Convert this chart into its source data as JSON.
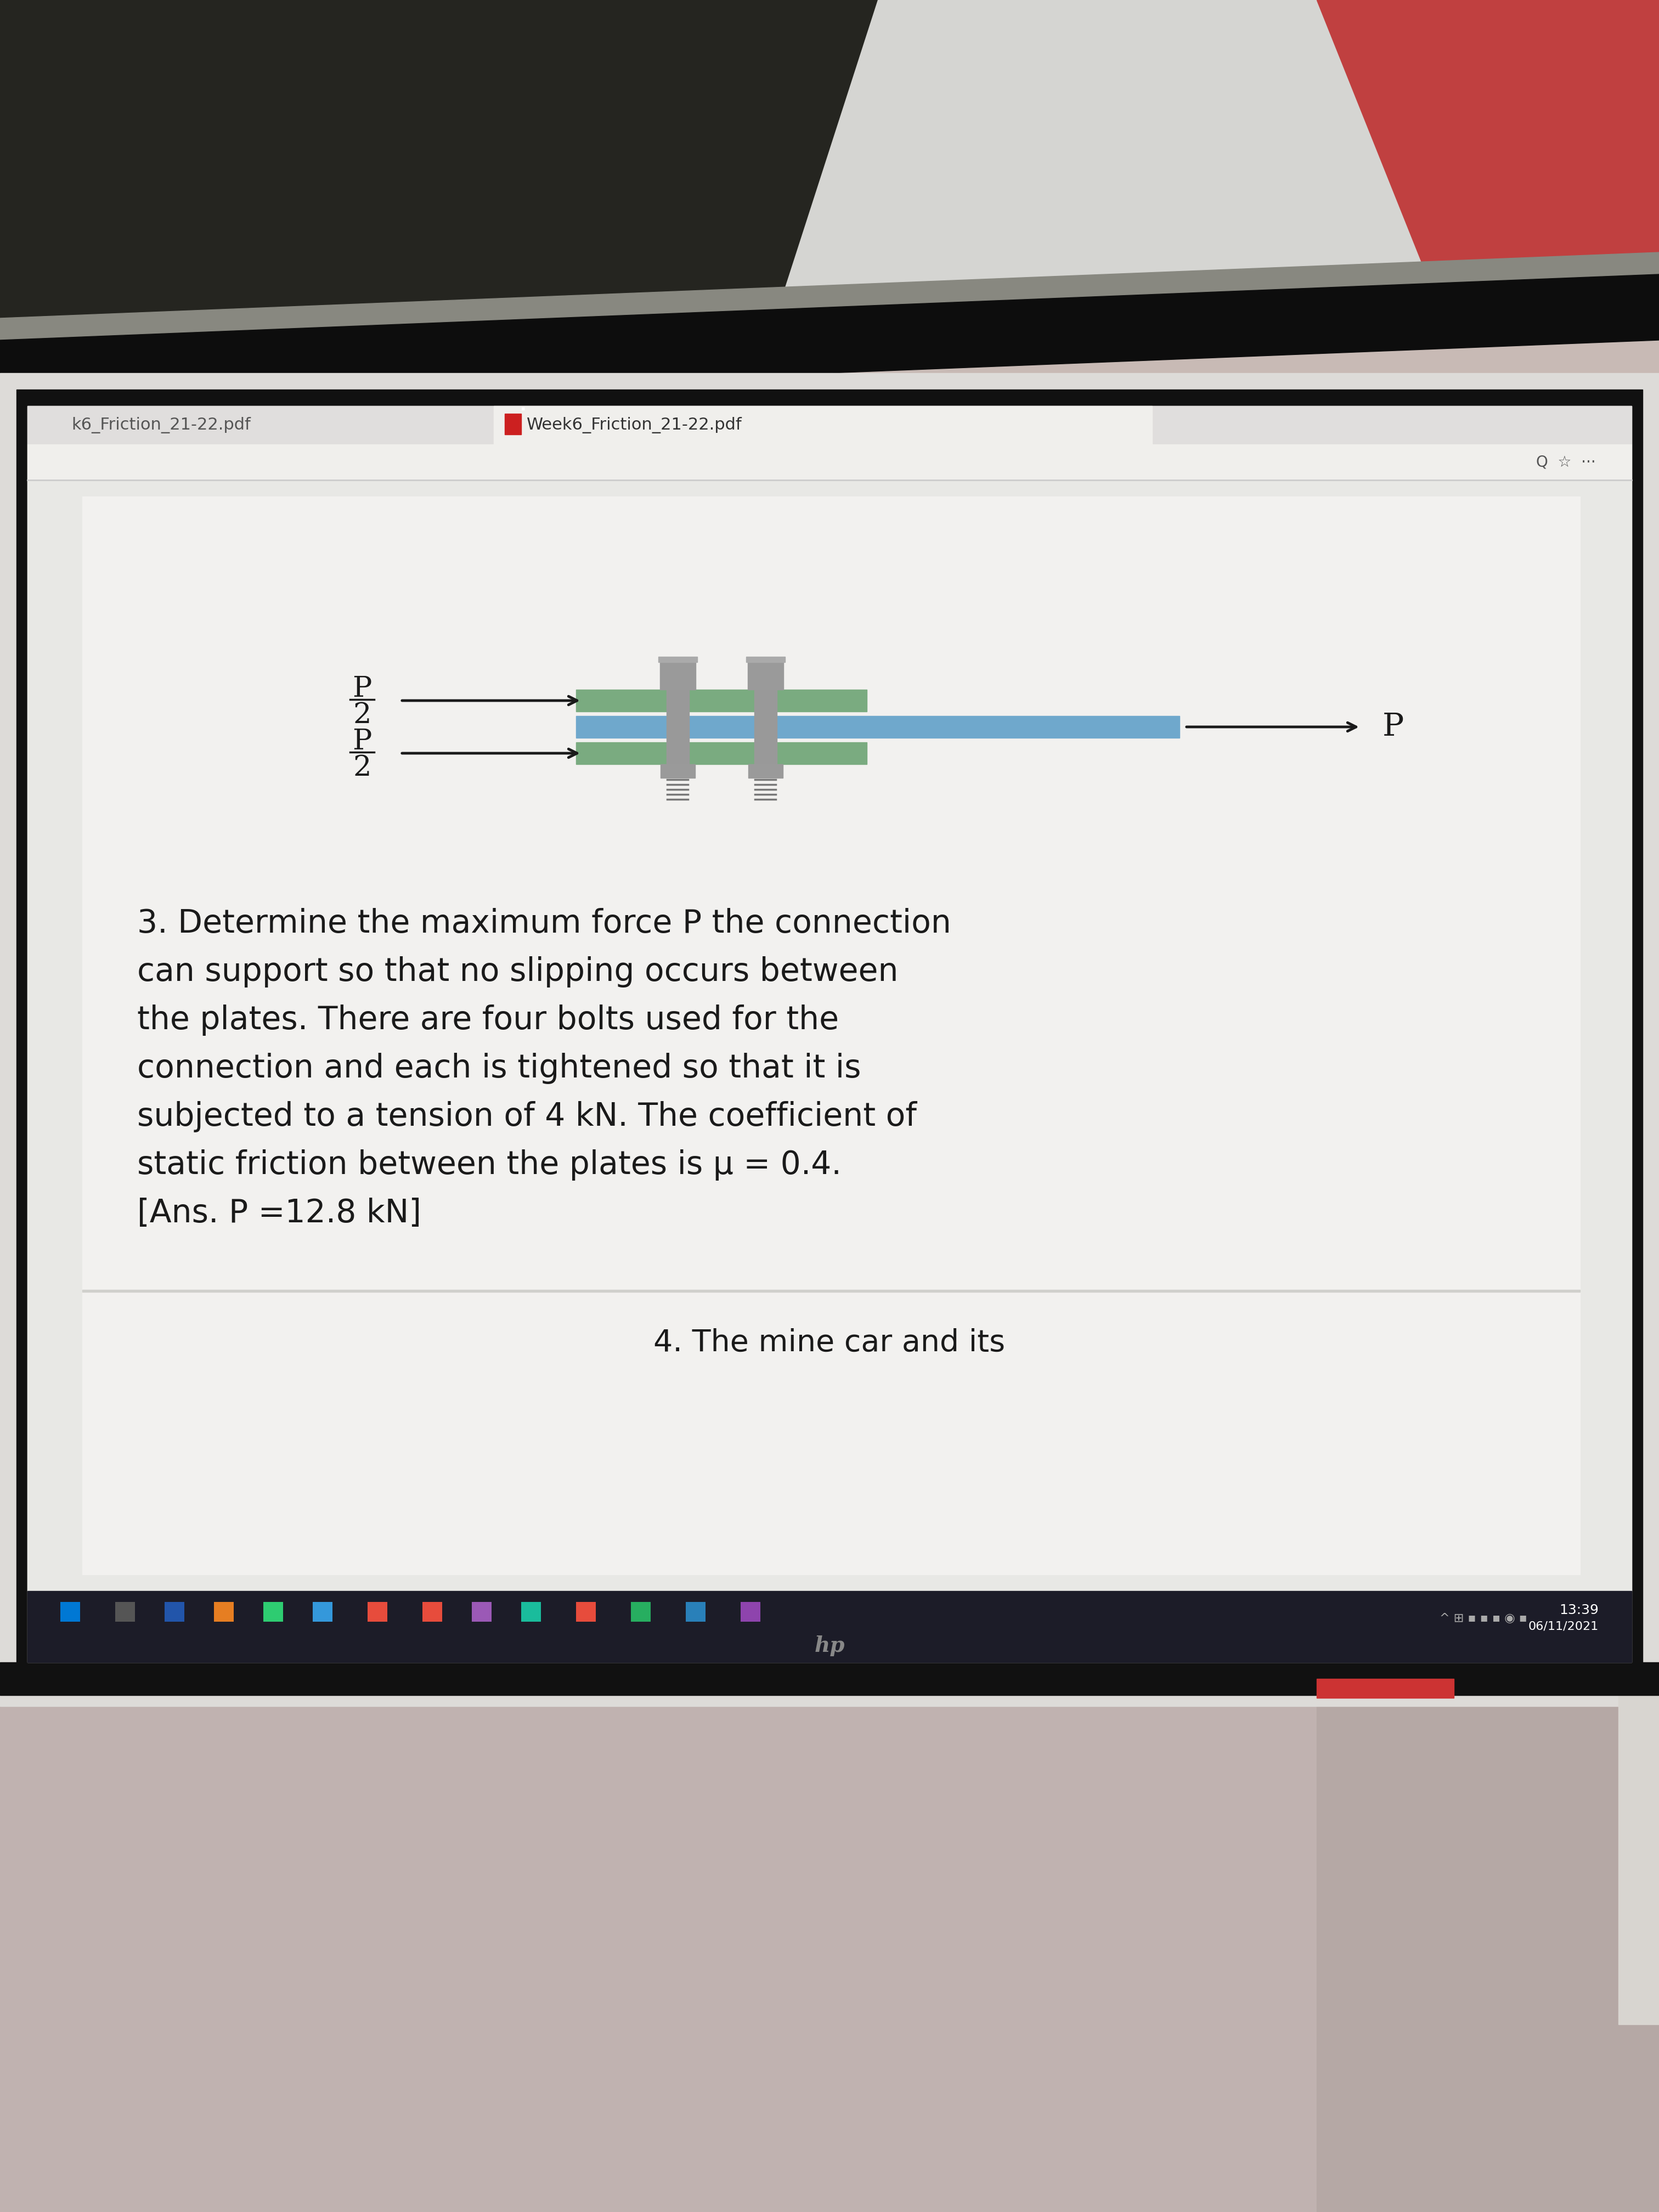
{
  "bg_top_left": "#2a2a2a",
  "bg_top_right_paper": "#d8d8d5",
  "bg_top_right_red": "#c04040",
  "laptop_bezel_color": "#111111",
  "screen_bg": "#e8e8e4",
  "browser_chrome_bg": "#f0efec",
  "tab_bg": "#e6e5e2",
  "active_tab_bg": "#f0efec",
  "content_bg": "#ebebea",
  "page_bg": "#f0f0ee",
  "page_separator_bg": "#d8d8d5",
  "taskbar_bg": "#1c1c28",
  "laptop_base_bg": "#111111",
  "bottom_cloth_bg": "#c0b0b0",
  "bottom_cloth_right": "#b8a8a5",
  "red_accent": "#c04545",
  "plate_green": "#7aab80",
  "plate_blue": "#6fa8cc",
  "bolt_gray": "#a0a0a0",
  "arrow_color": "#1a1a1a",
  "text_color": "#1a1a1a",
  "tab_text_left": "k6_Friction_21-22.pdf",
  "tab_text_center": "Week6_Friction_21-22.pdf",
  "problem_text_line1": "3. Determine the maximum force P the connection",
  "problem_text_line2": "can support so that no slipping occurs between",
  "problem_text_line3": "the plates. There are four bolts used for the",
  "problem_text_line4": "connection and each is tightened so that it is",
  "problem_text_line5": "subjected to a tension of 4 kN. The coefficient of",
  "problem_text_line6": "static friction between the plates is μ = 0.4.",
  "problem_text_line7": "[Ans. P =12.8 kN]",
  "next_text": "4. The mine car and its",
  "time_text": "13:39",
  "date_text": "06/11/2021"
}
